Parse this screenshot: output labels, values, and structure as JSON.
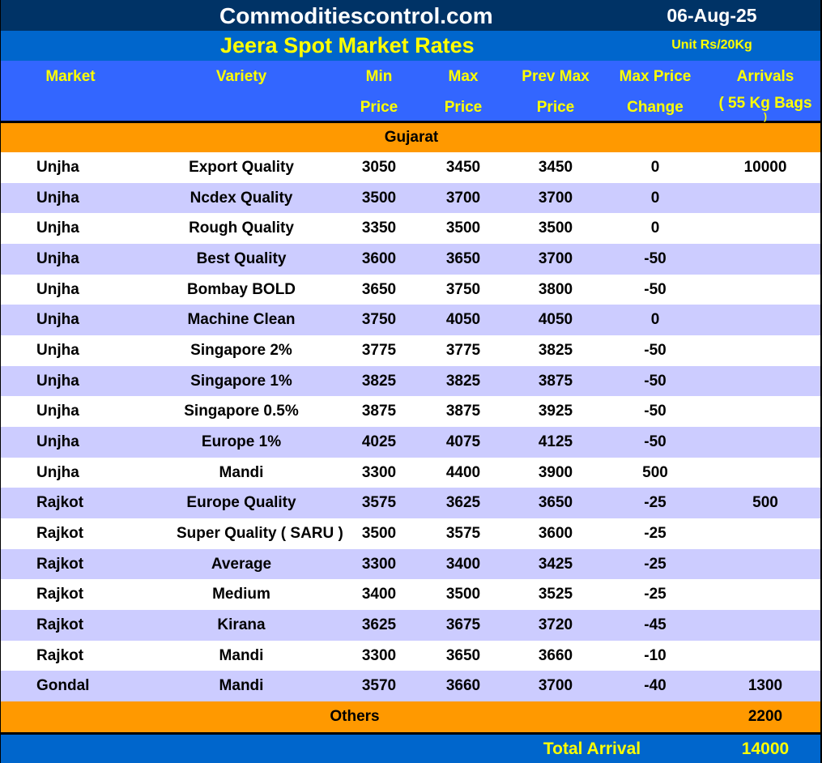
{
  "header": {
    "site": "Commoditiescontrol.com",
    "date": "06-Aug-25",
    "title": "Jeera Spot Market Rates",
    "unit": "Unit Rs/20Kg"
  },
  "columns": {
    "market": "Market",
    "variety": "Variety",
    "min_1": "Min",
    "min_2": "Price",
    "max_1": "Max",
    "max_2": "Price",
    "prev_1": "Prev Max",
    "prev_2": "Price",
    "change_1": "Max Price",
    "change_2": "Change",
    "arrivals_1": "Arrivals",
    "arrivals_2": "( 55 Kg Bags",
    "arrivals_3": ")"
  },
  "section": "Gujarat",
  "rows": [
    {
      "market": "Unjha",
      "variety": "Export Quality",
      "min": "3050",
      "max": "3450",
      "prev": "3450",
      "change": "0",
      "arrivals": "10000"
    },
    {
      "market": "Unjha",
      "variety": "Ncdex Quality",
      "min": "3500",
      "max": "3700",
      "prev": "3700",
      "change": "0",
      "arrivals": ""
    },
    {
      "market": "Unjha",
      "variety": "Rough Quality",
      "min": "3350",
      "max": "3500",
      "prev": "3500",
      "change": "0",
      "arrivals": ""
    },
    {
      "market": "Unjha",
      "variety": "Best Quality",
      "min": "3600",
      "max": "3650",
      "prev": "3700",
      "change": "-50",
      "arrivals": ""
    },
    {
      "market": "Unjha",
      "variety": "Bombay BOLD",
      "min": "3650",
      "max": "3750",
      "prev": "3800",
      "change": "-50",
      "arrivals": ""
    },
    {
      "market": "Unjha",
      "variety": "Machine Clean",
      "min": "3750",
      "max": "4050",
      "prev": "4050",
      "change": "0",
      "arrivals": ""
    },
    {
      "market": "Unjha",
      "variety": "Singapore 2%",
      "min": "3775",
      "max": "3775",
      "prev": "3825",
      "change": "-50",
      "arrivals": ""
    },
    {
      "market": "Unjha",
      "variety": "Singapore 1%",
      "min": "3825",
      "max": "3825",
      "prev": "3875",
      "change": "-50",
      "arrivals": ""
    },
    {
      "market": "Unjha",
      "variety": "Singapore 0.5%",
      "min": "3875",
      "max": "3875",
      "prev": "3925",
      "change": "-50",
      "arrivals": ""
    },
    {
      "market": "Unjha",
      "variety": "Europe 1%",
      "min": "4025",
      "max": "4075",
      "prev": "4125",
      "change": "-50",
      "arrivals": ""
    },
    {
      "market": "Unjha",
      "variety": "Mandi",
      "min": "3300",
      "max": "4400",
      "prev": "3900",
      "change": "500",
      "arrivals": ""
    },
    {
      "market": "Rajkot",
      "variety": "Europe Quality",
      "min": "3575",
      "max": "3625",
      "prev": "3650",
      "change": "-25",
      "arrivals": "500"
    },
    {
      "market": "Rajkot",
      "variety": "Super Quality ( SARU )",
      "min": "3500",
      "max": "3575",
      "prev": "3600",
      "change": "-25",
      "arrivals": ""
    },
    {
      "market": "Rajkot",
      "variety": "Average",
      "min": "3300",
      "max": "3400",
      "prev": "3425",
      "change": "-25",
      "arrivals": ""
    },
    {
      "market": "Rajkot",
      "variety": "Medium",
      "min": "3400",
      "max": "3500",
      "prev": "3525",
      "change": "-25",
      "arrivals": ""
    },
    {
      "market": "Rajkot",
      "variety": "Kirana",
      "min": "3625",
      "max": "3675",
      "prev": "3720",
      "change": "-45",
      "arrivals": ""
    },
    {
      "market": "Rajkot",
      "variety": "Mandi",
      "min": "3300",
      "max": "3650",
      "prev": "3660",
      "change": "-10",
      "arrivals": ""
    },
    {
      "market": "Gondal",
      "variety": "Mandi",
      "min": "3570",
      "max": "3660",
      "prev": "3700",
      "change": "-40",
      "arrivals": "1300"
    }
  ],
  "others": {
    "label": "Others",
    "arrivals": "2200"
  },
  "total": {
    "label": "Total Arrival",
    "value": "14000"
  },
  "colors": {
    "title_bg": "#003366",
    "subtitle_bg": "#0066cc",
    "header_bg": "#3366ff",
    "section_bg": "#ff9900",
    "stripe": "#ccccff",
    "header_text": "#ffff00"
  }
}
